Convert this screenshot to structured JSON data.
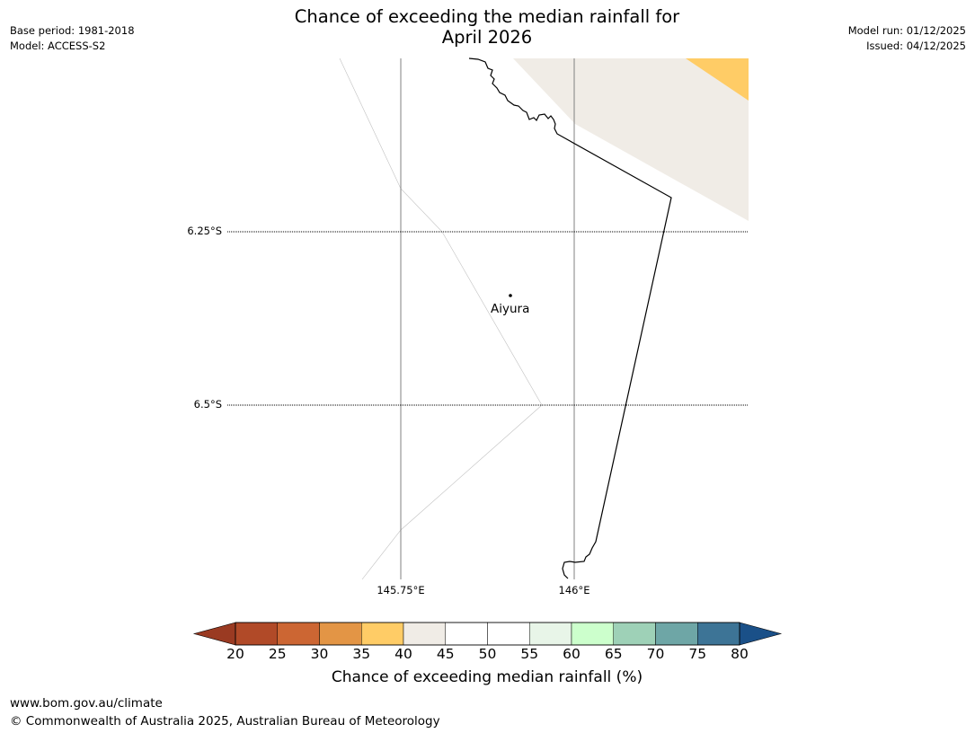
{
  "header": {
    "title_line1": "Chance of exceeding the median rainfall for",
    "title_line2": "April 2026",
    "base_period": "Base period: 1981-2018",
    "model": "Model: ACCESS-S2",
    "model_run": "Model run: 01/12/2025",
    "issued": "Issued: 04/12/2025"
  },
  "map": {
    "lat_labels": [
      "6.25°S",
      "6.5°S"
    ],
    "lon_labels": [
      "145.75°E",
      "146°E"
    ],
    "place": {
      "name": "Aiyura"
    },
    "colors": {
      "sea": "#ffffff",
      "land_40_45": "#f0ece6",
      "land_35_40": "#ffcc66",
      "coastline": "#000000",
      "graticule_lon": "#808080",
      "graticule_lat": "#000000"
    }
  },
  "colorbar": {
    "ticks": [
      "20",
      "25",
      "30",
      "35",
      "40",
      "45",
      "50",
      "55",
      "60",
      "65",
      "70",
      "75",
      "80"
    ],
    "low_extend_color": "#9a3a22",
    "high_extend_color": "#1a5088",
    "colors": [
      "#b14a28",
      "#cc6633",
      "#e39545",
      "#ffcc66",
      "#f0ece6",
      "#ffffff",
      "#ffffff",
      "#e8f5e8",
      "#ccffcc",
      "#9ed1b7",
      "#6ea6a6",
      "#3d7496"
    ],
    "label": "Chance of exceeding median rainfall (%)"
  },
  "footer": {
    "url": "www.bom.gov.au/climate",
    "copyright": "© Commonwealth of Australia 2025, Australian Bureau of Meteorology"
  }
}
